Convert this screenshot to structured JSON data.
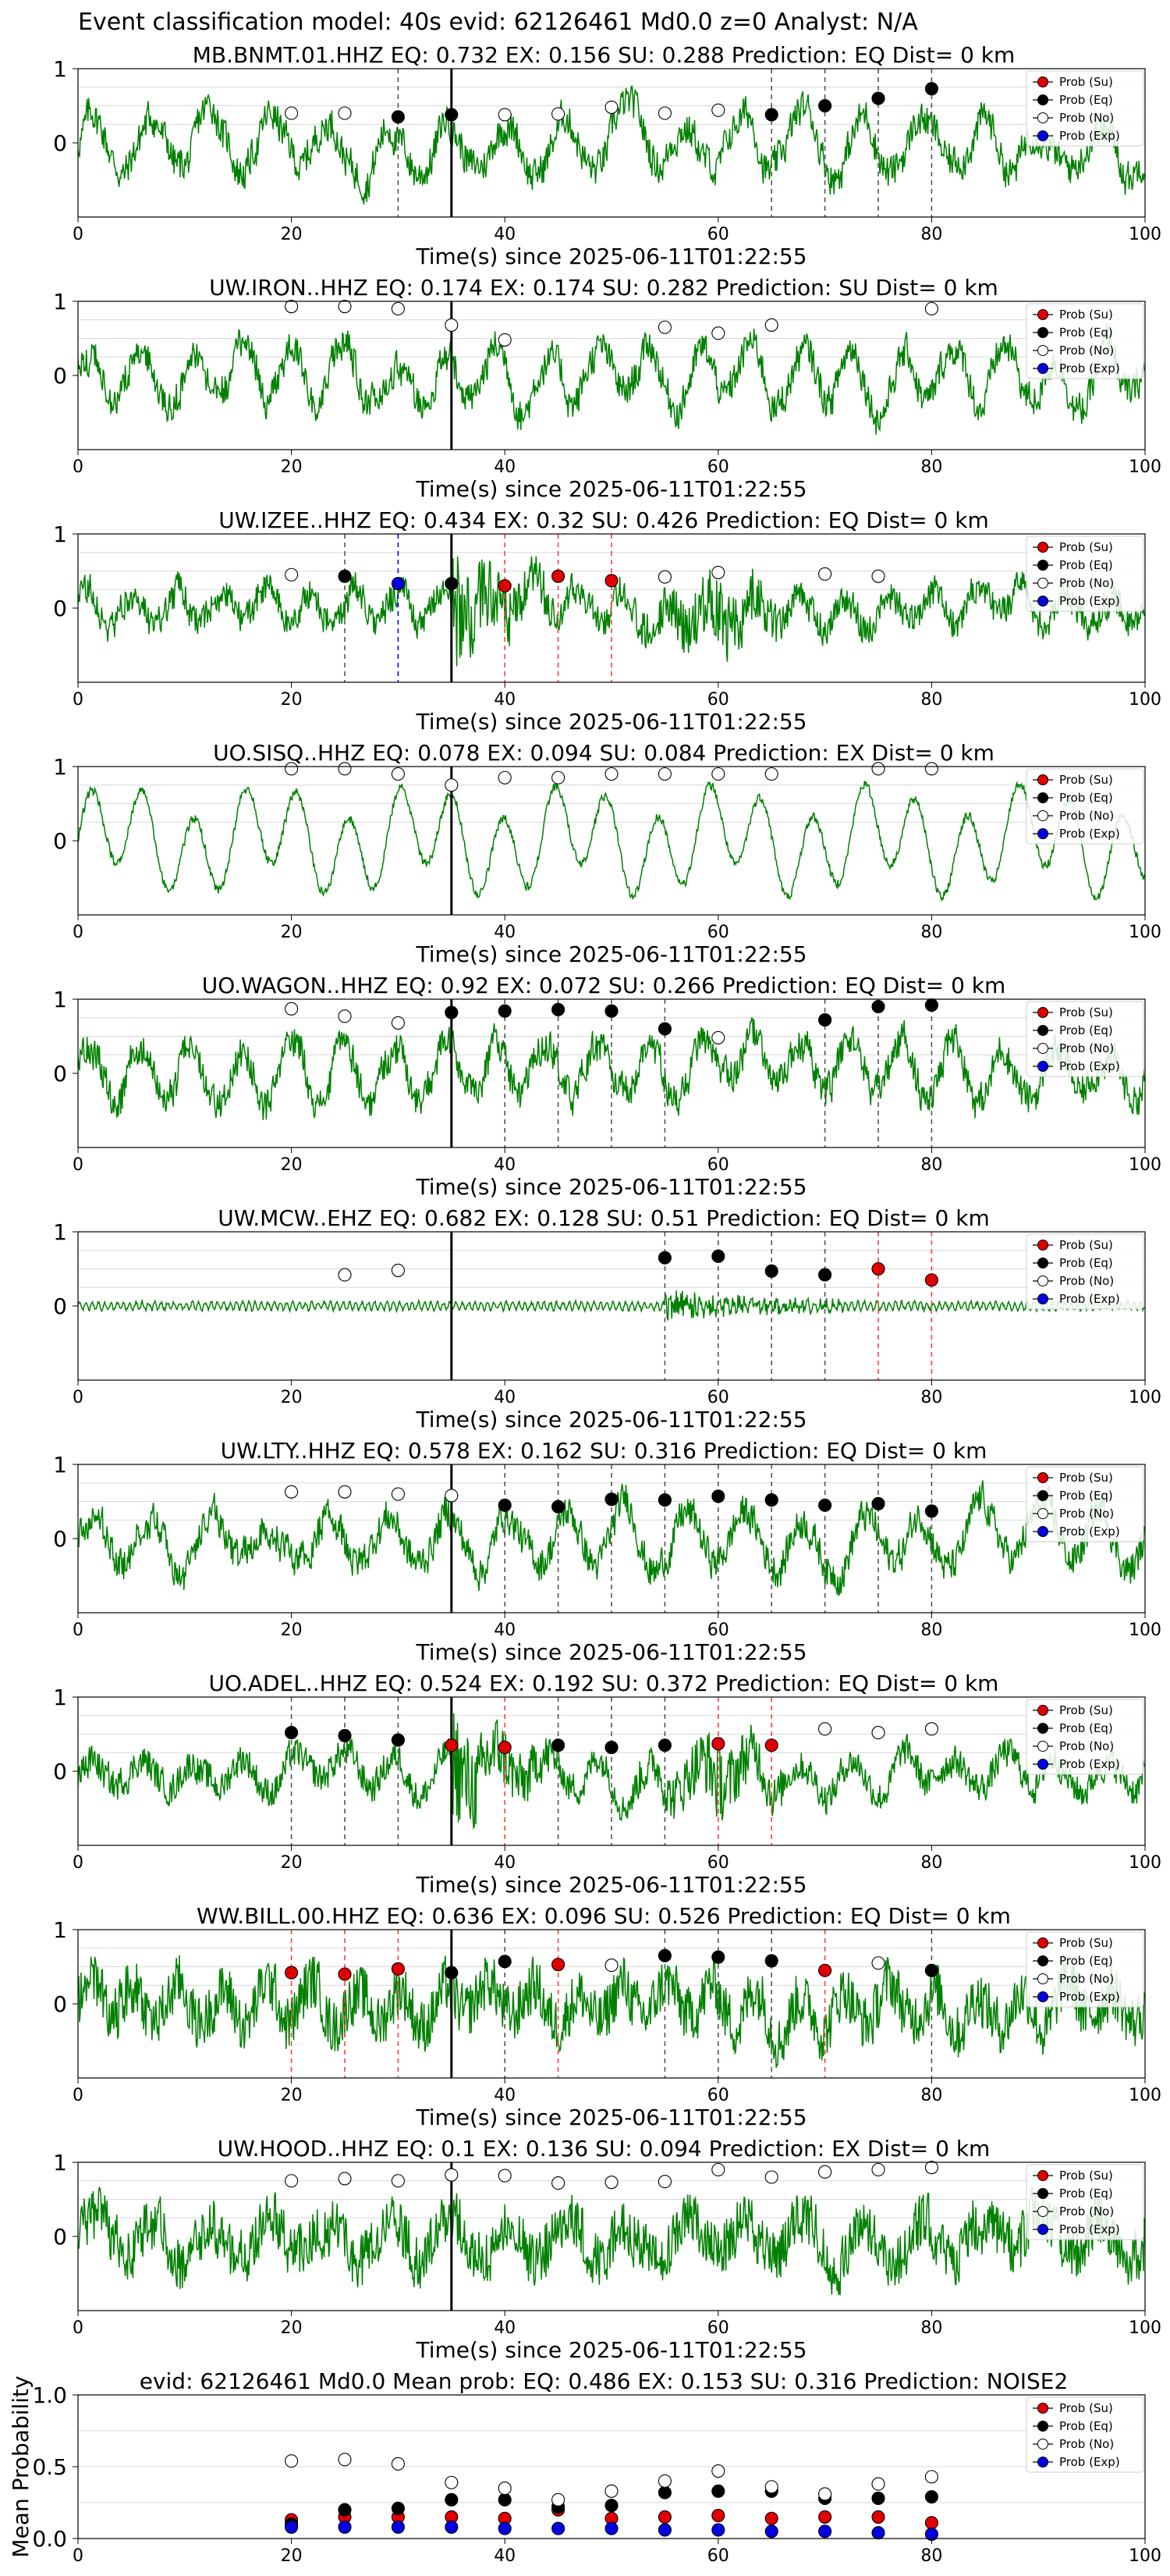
{
  "suptitle": "Event classification model: 40s evid: 62126461 Md0.0 z=0 Analyst: N/A",
  "xlabel": "Time(s) since 2025-06-11T01:22:55",
  "legend": [
    {
      "label": "Prob (Su)",
      "color": "#e00000"
    },
    {
      "label": "Prob (Eq)",
      "color": "#000000"
    },
    {
      "label": "Prob (No)",
      "color": "#ffffff"
    },
    {
      "label": "Prob (Exp)",
      "color": "#0000e0"
    }
  ],
  "colors": {
    "waveform": "#008000",
    "onset_line": "#000000",
    "eq_dash": "#555555",
    "su_dash": "#ff4040",
    "exp_dash": "#0000ff",
    "grid": "#d8d8d8"
  },
  "chart_data": [
    {
      "type": "line",
      "title": "MB.BNMT.01.HHZ   EQ: 0.732  EX: 0.156  SU: 0.288   Prediction: EQ    Dist= 0 km",
      "xlim": [
        0,
        100
      ],
      "ylim": [
        -1,
        1
      ],
      "xticks": [
        0,
        20,
        40,
        60,
        80,
        100
      ],
      "yticks": [
        0,
        1
      ],
      "onset": 35,
      "waveform_style": "mixed",
      "points": [
        {
          "t": 20,
          "p": 0.4,
          "cls": "No"
        },
        {
          "t": 25,
          "p": 0.4,
          "cls": "No"
        },
        {
          "t": 30,
          "p": 0.35,
          "cls": "Eq"
        },
        {
          "t": 35,
          "p": 0.38,
          "cls": "Eq"
        },
        {
          "t": 40,
          "p": 0.38,
          "cls": "No"
        },
        {
          "t": 45,
          "p": 0.39,
          "cls": "No"
        },
        {
          "t": 50,
          "p": 0.48,
          "cls": "No"
        },
        {
          "t": 55,
          "p": 0.4,
          "cls": "No"
        },
        {
          "t": 60,
          "p": 0.44,
          "cls": "No"
        },
        {
          "t": 65,
          "p": 0.38,
          "cls": "Eq"
        },
        {
          "t": 70,
          "p": 0.5,
          "cls": "Eq"
        },
        {
          "t": 75,
          "p": 0.6,
          "cls": "Eq"
        },
        {
          "t": 80,
          "p": 0.73,
          "cls": "Eq"
        }
      ]
    },
    {
      "type": "line",
      "title": "UW.IRON..HHZ   EQ: 0.174  EX: 0.174  SU: 0.282   Prediction: SU    Dist= 0 km",
      "xlim": [
        0,
        100
      ],
      "ylim": [
        -1,
        1
      ],
      "xticks": [
        0,
        20,
        40,
        60,
        80,
        100
      ],
      "yticks": [
        0,
        1
      ],
      "onset": 35,
      "waveform_style": "mixed",
      "points": [
        {
          "t": 20,
          "p": 0.93,
          "cls": "No"
        },
        {
          "t": 25,
          "p": 0.93,
          "cls": "No"
        },
        {
          "t": 30,
          "p": 0.9,
          "cls": "No"
        },
        {
          "t": 35,
          "p": 0.68,
          "cls": "No"
        },
        {
          "t": 40,
          "p": 0.48,
          "cls": "No"
        },
        {
          "t": 55,
          "p": 0.65,
          "cls": "No"
        },
        {
          "t": 60,
          "p": 0.57,
          "cls": "No"
        },
        {
          "t": 65,
          "p": 0.68,
          "cls": "No"
        },
        {
          "t": 80,
          "p": 0.9,
          "cls": "No"
        }
      ]
    },
    {
      "type": "line",
      "title": "UW.IZEE..HHZ   EQ: 0.434  EX: 0.32  SU: 0.426   Prediction: EQ    Dist= 0 km",
      "xlim": [
        0,
        100
      ],
      "ylim": [
        -1,
        1
      ],
      "xticks": [
        0,
        20,
        40,
        60,
        80,
        100
      ],
      "yticks": [
        0,
        1
      ],
      "onset": 35,
      "waveform_style": "burst",
      "points": [
        {
          "t": 20,
          "p": 0.45,
          "cls": "No"
        },
        {
          "t": 25,
          "p": 0.43,
          "cls": "Eq"
        },
        {
          "t": 30,
          "p": 0.33,
          "cls": "Exp"
        },
        {
          "t": 35,
          "p": 0.33,
          "cls": "Eq"
        },
        {
          "t": 40,
          "p": 0.3,
          "cls": "Su"
        },
        {
          "t": 45,
          "p": 0.43,
          "cls": "Su"
        },
        {
          "t": 50,
          "p": 0.37,
          "cls": "Su"
        },
        {
          "t": 55,
          "p": 0.42,
          "cls": "No"
        },
        {
          "t": 60,
          "p": 0.48,
          "cls": "No"
        },
        {
          "t": 70,
          "p": 0.46,
          "cls": "No"
        },
        {
          "t": 75,
          "p": 0.43,
          "cls": "No"
        }
      ]
    },
    {
      "type": "line",
      "title": "UO.SISQ..HHZ   EQ: 0.078  EX: 0.094  SU: 0.084   Prediction: EX    Dist= 0 km",
      "xlim": [
        0,
        100
      ],
      "ylim": [
        -1,
        1
      ],
      "xticks": [
        0,
        20,
        40,
        60,
        80,
        100
      ],
      "yticks": [
        0,
        1
      ],
      "onset": 35,
      "waveform_style": "sine",
      "points": [
        {
          "t": 20,
          "p": 0.97,
          "cls": "No"
        },
        {
          "t": 25,
          "p": 0.97,
          "cls": "No"
        },
        {
          "t": 30,
          "p": 0.9,
          "cls": "No"
        },
        {
          "t": 35,
          "p": 0.75,
          "cls": "No"
        },
        {
          "t": 40,
          "p": 0.85,
          "cls": "No"
        },
        {
          "t": 45,
          "p": 0.85,
          "cls": "No"
        },
        {
          "t": 50,
          "p": 0.9,
          "cls": "No"
        },
        {
          "t": 55,
          "p": 0.9,
          "cls": "No"
        },
        {
          "t": 60,
          "p": 0.9,
          "cls": "No"
        },
        {
          "t": 65,
          "p": 0.9,
          "cls": "No"
        },
        {
          "t": 75,
          "p": 0.97,
          "cls": "No"
        },
        {
          "t": 80,
          "p": 0.97,
          "cls": "No"
        }
      ]
    },
    {
      "type": "line",
      "title": "UO.WAGON..HHZ   EQ: 0.92  EX: 0.072  SU: 0.266   Prediction: EQ    Dist= 0 km",
      "xlim": [
        0,
        100
      ],
      "ylim": [
        -1,
        1
      ],
      "xticks": [
        0,
        20,
        40,
        60,
        80,
        100
      ],
      "yticks": [
        0,
        1
      ],
      "onset": 35,
      "waveform_style": "mixed",
      "points": [
        {
          "t": 20,
          "p": 0.87,
          "cls": "No"
        },
        {
          "t": 25,
          "p": 0.77,
          "cls": "No"
        },
        {
          "t": 30,
          "p": 0.68,
          "cls": "No"
        },
        {
          "t": 35,
          "p": 0.82,
          "cls": "Eq"
        },
        {
          "t": 40,
          "p": 0.84,
          "cls": "Eq"
        },
        {
          "t": 45,
          "p": 0.86,
          "cls": "Eq"
        },
        {
          "t": 50,
          "p": 0.84,
          "cls": "Eq"
        },
        {
          "t": 55,
          "p": 0.6,
          "cls": "Eq"
        },
        {
          "t": 60,
          "p": 0.48,
          "cls": "No"
        },
        {
          "t": 70,
          "p": 0.72,
          "cls": "Eq"
        },
        {
          "t": 75,
          "p": 0.9,
          "cls": "Eq"
        },
        {
          "t": 80,
          "p": 0.92,
          "cls": "Eq"
        }
      ]
    },
    {
      "type": "line",
      "title": "UW.MCW..EHZ   EQ: 0.682  EX: 0.128  SU: 0.51   Prediction: EQ    Dist= 0 km",
      "xlim": [
        0,
        100
      ],
      "ylim": [
        -1,
        1
      ],
      "xticks": [
        0,
        20,
        40,
        60,
        80,
        100
      ],
      "yticks": [
        0,
        1
      ],
      "onset": 35,
      "waveform_style": "quiet",
      "points": [
        {
          "t": 25,
          "p": 0.42,
          "cls": "No"
        },
        {
          "t": 30,
          "p": 0.48,
          "cls": "No"
        },
        {
          "t": 55,
          "p": 0.65,
          "cls": "Eq"
        },
        {
          "t": 60,
          "p": 0.67,
          "cls": "Eq"
        },
        {
          "t": 65,
          "p": 0.47,
          "cls": "Eq"
        },
        {
          "t": 70,
          "p": 0.42,
          "cls": "Eq"
        },
        {
          "t": 75,
          "p": 0.5,
          "cls": "Su"
        },
        {
          "t": 80,
          "p": 0.35,
          "cls": "Su"
        }
      ]
    },
    {
      "type": "line",
      "title": "UW.LTY..HHZ   EQ: 0.578  EX: 0.162  SU: 0.316   Prediction: EQ    Dist= 0 km",
      "xlim": [
        0,
        100
      ],
      "ylim": [
        -1,
        1
      ],
      "xticks": [
        0,
        20,
        40,
        60,
        80,
        100
      ],
      "yticks": [
        0,
        1
      ],
      "onset": 35,
      "waveform_style": "mixed",
      "points": [
        {
          "t": 20,
          "p": 0.63,
          "cls": "No"
        },
        {
          "t": 25,
          "p": 0.63,
          "cls": "No"
        },
        {
          "t": 30,
          "p": 0.6,
          "cls": "No"
        },
        {
          "t": 35,
          "p": 0.58,
          "cls": "No"
        },
        {
          "t": 40,
          "p": 0.45,
          "cls": "Eq"
        },
        {
          "t": 45,
          "p": 0.43,
          "cls": "Eq"
        },
        {
          "t": 50,
          "p": 0.53,
          "cls": "Eq"
        },
        {
          "t": 55,
          "p": 0.52,
          "cls": "Eq"
        },
        {
          "t": 60,
          "p": 0.57,
          "cls": "Eq"
        },
        {
          "t": 65,
          "p": 0.52,
          "cls": "Eq"
        },
        {
          "t": 70,
          "p": 0.45,
          "cls": "Eq"
        },
        {
          "t": 75,
          "p": 0.47,
          "cls": "Eq"
        },
        {
          "t": 80,
          "p": 0.37,
          "cls": "Eq"
        }
      ]
    },
    {
      "type": "line",
      "title": "UO.ADEL..HHZ   EQ: 0.524  EX: 0.192  SU: 0.372   Prediction: EQ    Dist= 0 km",
      "xlim": [
        0,
        100
      ],
      "ylim": [
        -1,
        1
      ],
      "xticks": [
        0,
        20,
        40,
        60,
        80,
        100
      ],
      "yticks": [
        0,
        1
      ],
      "onset": 35,
      "waveform_style": "burst",
      "points": [
        {
          "t": 20,
          "p": 0.52,
          "cls": "Eq"
        },
        {
          "t": 25,
          "p": 0.48,
          "cls": "Eq"
        },
        {
          "t": 30,
          "p": 0.42,
          "cls": "Eq"
        },
        {
          "t": 35,
          "p": 0.35,
          "cls": "Su"
        },
        {
          "t": 40,
          "p": 0.32,
          "cls": "Su"
        },
        {
          "t": 45,
          "p": 0.35,
          "cls": "Eq"
        },
        {
          "t": 50,
          "p": 0.32,
          "cls": "Eq"
        },
        {
          "t": 55,
          "p": 0.35,
          "cls": "Eq"
        },
        {
          "t": 60,
          "p": 0.37,
          "cls": "Su"
        },
        {
          "t": 65,
          "p": 0.35,
          "cls": "Su"
        },
        {
          "t": 70,
          "p": 0.57,
          "cls": "No"
        },
        {
          "t": 75,
          "p": 0.52,
          "cls": "No"
        },
        {
          "t": 80,
          "p": 0.57,
          "cls": "No"
        }
      ]
    },
    {
      "type": "line",
      "title": "WW.BILL.00.HHZ   EQ: 0.636  EX: 0.096  SU: 0.526   Prediction: EQ    Dist= 0 km",
      "xlim": [
        0,
        100
      ],
      "ylim": [
        -1,
        1
      ],
      "xticks": [
        0,
        20,
        40,
        60,
        80,
        100
      ],
      "yticks": [
        0,
        1
      ],
      "onset": 35,
      "waveform_style": "noisy",
      "points": [
        {
          "t": 20,
          "p": 0.42,
          "cls": "Su"
        },
        {
          "t": 25,
          "p": 0.4,
          "cls": "Su"
        },
        {
          "t": 30,
          "p": 0.47,
          "cls": "Su"
        },
        {
          "t": 35,
          "p": 0.42,
          "cls": "Eq"
        },
        {
          "t": 40,
          "p": 0.57,
          "cls": "Eq"
        },
        {
          "t": 45,
          "p": 0.53,
          "cls": "Su"
        },
        {
          "t": 50,
          "p": 0.52,
          "cls": "No"
        },
        {
          "t": 55,
          "p": 0.65,
          "cls": "Eq"
        },
        {
          "t": 60,
          "p": 0.63,
          "cls": "Eq"
        },
        {
          "t": 65,
          "p": 0.58,
          "cls": "Eq"
        },
        {
          "t": 70,
          "p": 0.45,
          "cls": "Su"
        },
        {
          "t": 75,
          "p": 0.55,
          "cls": "No"
        },
        {
          "t": 80,
          "p": 0.45,
          "cls": "Eq"
        }
      ]
    },
    {
      "type": "line",
      "title": "UW.HOOD..HHZ   EQ: 0.1  EX: 0.136  SU: 0.094   Prediction: EX    Dist= 0 km",
      "xlim": [
        0,
        100
      ],
      "ylim": [
        -1,
        1
      ],
      "xticks": [
        0,
        20,
        40,
        60,
        80,
        100
      ],
      "yticks": [
        0,
        1
      ],
      "onset": 35,
      "waveform_style": "noisy",
      "points": [
        {
          "t": 20,
          "p": 0.75,
          "cls": "No"
        },
        {
          "t": 25,
          "p": 0.78,
          "cls": "No"
        },
        {
          "t": 30,
          "p": 0.75,
          "cls": "No"
        },
        {
          "t": 35,
          "p": 0.83,
          "cls": "No"
        },
        {
          "t": 40,
          "p": 0.82,
          "cls": "No"
        },
        {
          "t": 45,
          "p": 0.72,
          "cls": "No"
        },
        {
          "t": 50,
          "p": 0.73,
          "cls": "No"
        },
        {
          "t": 55,
          "p": 0.74,
          "cls": "No"
        },
        {
          "t": 60,
          "p": 0.9,
          "cls": "No"
        },
        {
          "t": 65,
          "p": 0.8,
          "cls": "No"
        },
        {
          "t": 70,
          "p": 0.87,
          "cls": "No"
        },
        {
          "t": 75,
          "p": 0.9,
          "cls": "No"
        },
        {
          "t": 80,
          "p": 0.93,
          "cls": "No"
        }
      ]
    },
    {
      "type": "scatter",
      "title": "evid: 62126461  Md0.0  Mean prob:   EQ: 0.486  EX: 0.153  SU: 0.316   Prediction: NOISE2",
      "ylabel": "Mean Probability",
      "xlim": [
        0,
        100
      ],
      "ylim": [
        0,
        1
      ],
      "xticks": [
        0,
        20,
        40,
        60,
        80,
        100
      ],
      "yticks": [
        0.0,
        0.5,
        1.0
      ],
      "x": [
        20,
        25,
        30,
        35,
        40,
        45,
        50,
        55,
        60,
        65,
        70,
        75,
        80
      ],
      "series": [
        {
          "name": "Prob (Su)",
          "values": [
            0.13,
            0.15,
            0.15,
            0.15,
            0.14,
            0.2,
            0.14,
            0.15,
            0.16,
            0.14,
            0.15,
            0.15,
            0.11
          ]
        },
        {
          "name": "Prob (Eq)",
          "values": [
            0.1,
            0.2,
            0.21,
            0.27,
            0.27,
            0.22,
            0.23,
            0.32,
            0.33,
            0.33,
            0.28,
            0.28,
            0.29
          ]
        },
        {
          "name": "Prob (No)",
          "values": [
            0.54,
            0.55,
            0.52,
            0.39,
            0.35,
            0.27,
            0.33,
            0.4,
            0.47,
            0.36,
            0.31,
            0.38,
            0.43
          ]
        },
        {
          "name": "Prob (Exp)",
          "values": [
            0.08,
            0.08,
            0.08,
            0.08,
            0.07,
            0.07,
            0.07,
            0.06,
            0.06,
            0.05,
            0.05,
            0.04,
            0.03
          ]
        }
      ]
    }
  ]
}
